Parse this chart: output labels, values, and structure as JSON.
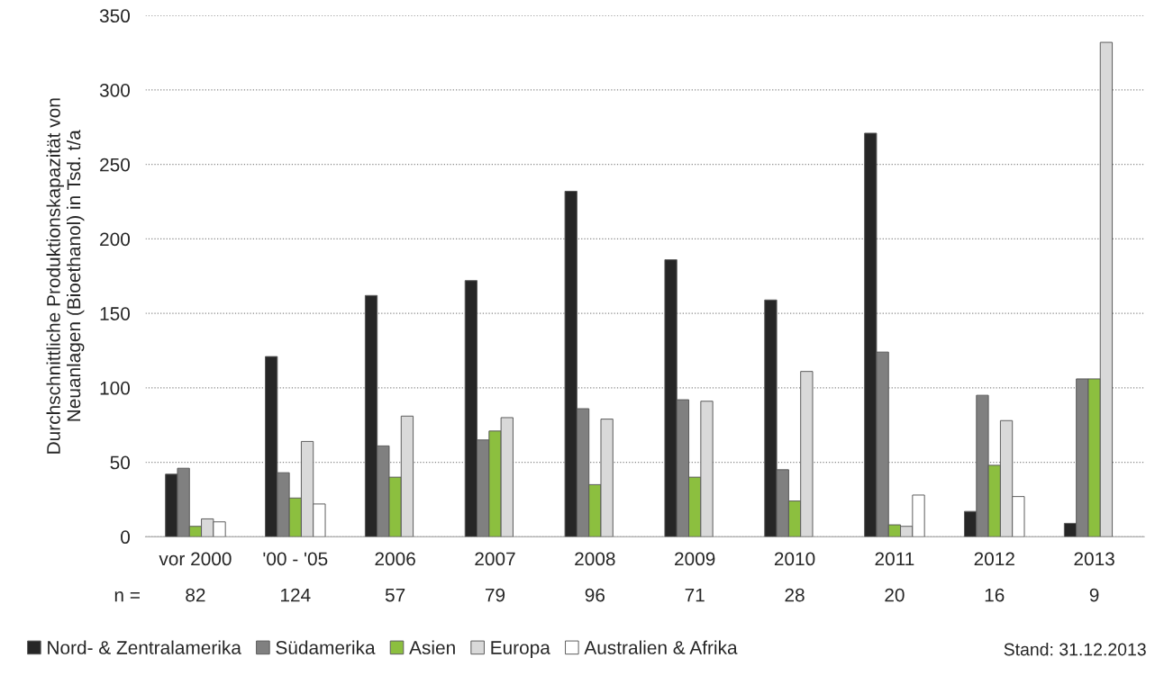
{
  "chart_data": {
    "type": "bar",
    "ylabel": "Durchschnittliche Produktionskapazität von\nNeuanlagen (Bioethanol) in Tsd. t/a",
    "categories": [
      "vor 2000",
      "'00 - '05",
      "2006",
      "2007",
      "2008",
      "2009",
      "2010",
      "2011",
      "2012",
      "2013"
    ],
    "series": [
      {
        "name": "Nord- & Zentralamerika",
        "color": "#262626",
        "values": [
          42,
          121,
          162,
          172,
          232,
          186,
          159,
          271,
          17,
          9
        ]
      },
      {
        "name": "Südamerika",
        "color": "#808080",
        "values": [
          46,
          43,
          61,
          65,
          86,
          92,
          45,
          124,
          95,
          106
        ]
      },
      {
        "name": "Asien",
        "color": "#8cbf3f",
        "values": [
          7,
          26,
          40,
          71,
          35,
          40,
          24,
          8,
          48,
          106
        ]
      },
      {
        "name": "Europa",
        "color": "#d9d9d9",
        "values": [
          12,
          64,
          81,
          80,
          79,
          91,
          111,
          7,
          78,
          332
        ]
      },
      {
        "name": "Australien & Afrika",
        "color": "#ffffff",
        "values": [
          10,
          22,
          null,
          null,
          null,
          null,
          null,
          28,
          27,
          null
        ]
      }
    ],
    "ylim": [
      0,
      350
    ],
    "yticks": [
      0,
      50,
      100,
      150,
      200,
      250,
      300,
      350
    ],
    "grid": "y",
    "legend": "bottom",
    "annotations": [
      "n =",
      "82",
      "124",
      "57",
      "79",
      "96",
      "71",
      "28",
      "20",
      "16",
      "9",
      "Stand: 31.12.2013"
    ]
  }
}
